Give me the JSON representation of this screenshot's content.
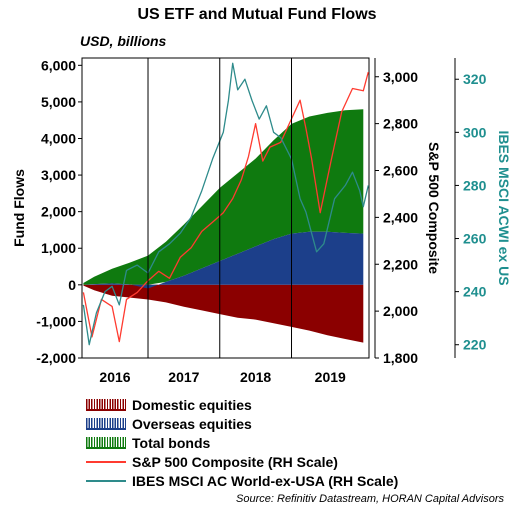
{
  "chart_data": {
    "type": "area",
    "title": "US ETF and Mutual Fund Flows",
    "units_label": "USD, billions",
    "ylabel": "Fund Flows",
    "y2label": "S&P 500 Composite",
    "y3label": "IBES MSCI ACWI ex US",
    "x_ticks": [
      "2016",
      "2017",
      "2018",
      "2019"
    ],
    "xlim": [
      2015.58,
      2019.58
    ],
    "ylim": [
      -2000,
      6200
    ],
    "y2lim": [
      1800,
      3080
    ],
    "y3lim": [
      215,
      328
    ],
    "y_ticks": [
      -2000,
      -1000,
      0,
      1000,
      2000,
      3000,
      4000,
      5000,
      6000
    ],
    "y_tick_labels": [
      "-2,000",
      "-1,000",
      "0",
      "1,000",
      "2,000",
      "3,000",
      "4,000",
      "5,000",
      "6,000"
    ],
    "y2_ticks": [
      1800,
      2000,
      2200,
      2400,
      2600,
      2800,
      3000
    ],
    "y2_tick_labels": [
      "1,800",
      "2,000",
      "2,200",
      "2,400",
      "2,600",
      "2,800",
      "3,000"
    ],
    "y3_ticks": [
      220,
      240,
      260,
      280,
      300,
      320
    ],
    "y3_tick_labels": [
      "220",
      "240",
      "260",
      "280",
      "300",
      "320"
    ],
    "year_dividers": [
      2016.5,
      2017.5,
      2018.5
    ],
    "grid": false,
    "legend_position": "bottom",
    "x": [
      2015.6,
      2015.75,
      2016.0,
      2016.25,
      2016.5,
      2016.75,
      2017.0,
      2017.25,
      2017.5,
      2017.75,
      2018.0,
      2018.25,
      2018.5,
      2018.75,
      2019.0,
      2019.25,
      2019.5
    ],
    "stacked_series": [
      {
        "name": "Domestic equities",
        "color": "#8b0000",
        "values": [
          -20,
          -150,
          -300,
          -350,
          -400,
          -480,
          -600,
          -700,
          -800,
          -900,
          -950,
          -1050,
          -1150,
          -1250,
          -1380,
          -1480,
          -1580
        ]
      },
      {
        "name": "Overseas equities",
        "color": "#1c3f8a",
        "values": [
          0,
          20,
          40,
          10,
          -100,
          80,
          250,
          450,
          650,
          850,
          1050,
          1250,
          1400,
          1450,
          1450,
          1420,
          1400
        ]
      },
      {
        "name": "Total bonds",
        "color": "#0f7a0f",
        "values": [
          50,
          200,
          400,
          600,
          800,
          1100,
          1400,
          1700,
          2000,
          2200,
          2400,
          2700,
          3000,
          3150,
          3250,
          3350,
          3400
        ]
      }
    ],
    "line_series": [
      {
        "name": "S&P 500 Composite (RH Scale)",
        "axis": "y2",
        "color": "#ff3b30",
        "x": [
          2015.6,
          2015.72,
          2015.85,
          2016.0,
          2016.1,
          2016.2,
          2016.35,
          2016.5,
          2016.65,
          2016.8,
          2016.95,
          2017.1,
          2017.25,
          2017.4,
          2017.55,
          2017.68,
          2017.8,
          2017.9,
          2018.0,
          2018.1,
          2018.2,
          2018.35,
          2018.5,
          2018.62,
          2018.7,
          2018.78,
          2018.9,
          2019.05,
          2019.2,
          2019.35,
          2019.5,
          2019.57
        ],
        "values": [
          2080,
          1890,
          2050,
          2020,
          1870,
          2050,
          2080,
          2130,
          2170,
          2140,
          2230,
          2270,
          2340,
          2380,
          2420,
          2480,
          2560,
          2660,
          2800,
          2640,
          2700,
          2720,
          2820,
          2900,
          2780,
          2650,
          2420,
          2640,
          2850,
          2950,
          2940,
          3020
        ]
      },
      {
        "name": "IBES MSCI AC World-ex-USA (RH Scale)",
        "axis": "y3",
        "color": "#2e8b8b",
        "x": [
          2015.6,
          2015.68,
          2015.78,
          2015.9,
          2016.0,
          2016.1,
          2016.2,
          2016.35,
          2016.5,
          2016.65,
          2016.8,
          2016.95,
          2017.1,
          2017.25,
          2017.4,
          2017.55,
          2017.62,
          2017.68,
          2017.75,
          2017.85,
          2017.95,
          2018.05,
          2018.15,
          2018.25,
          2018.35,
          2018.5,
          2018.62,
          2018.7,
          2018.78,
          2018.85,
          2018.95,
          2019.1,
          2019.25,
          2019.35,
          2019.45,
          2019.5,
          2019.57
        ],
        "values": [
          235,
          220,
          232,
          240,
          242,
          235,
          248,
          250,
          247,
          255,
          258,
          262,
          268,
          278,
          290,
          300,
          312,
          326,
          316,
          320,
          312,
          305,
          310,
          300,
          298,
          290,
          275,
          270,
          262,
          255,
          258,
          275,
          280,
          285,
          278,
          272,
          280
        ]
      }
    ]
  },
  "legend": [
    {
      "label": "Domestic equities",
      "kind": "area",
      "color": "#8b0000"
    },
    {
      "label": "Overseas equities",
      "kind": "area",
      "color": "#1c3f8a"
    },
    {
      "label": "Total bonds",
      "kind": "area",
      "color": "#0f7a0f"
    },
    {
      "label": "S&P 500 Composite (RH Scale)",
      "kind": "line",
      "color": "#ff3b30"
    },
    {
      "label": "IBES MSCI AC World-ex-USA (RH Scale)",
      "kind": "line",
      "color": "#2e8b8b"
    }
  ],
  "source": "Source: Refinitiv Datastream, HORAN Capital Advisors"
}
